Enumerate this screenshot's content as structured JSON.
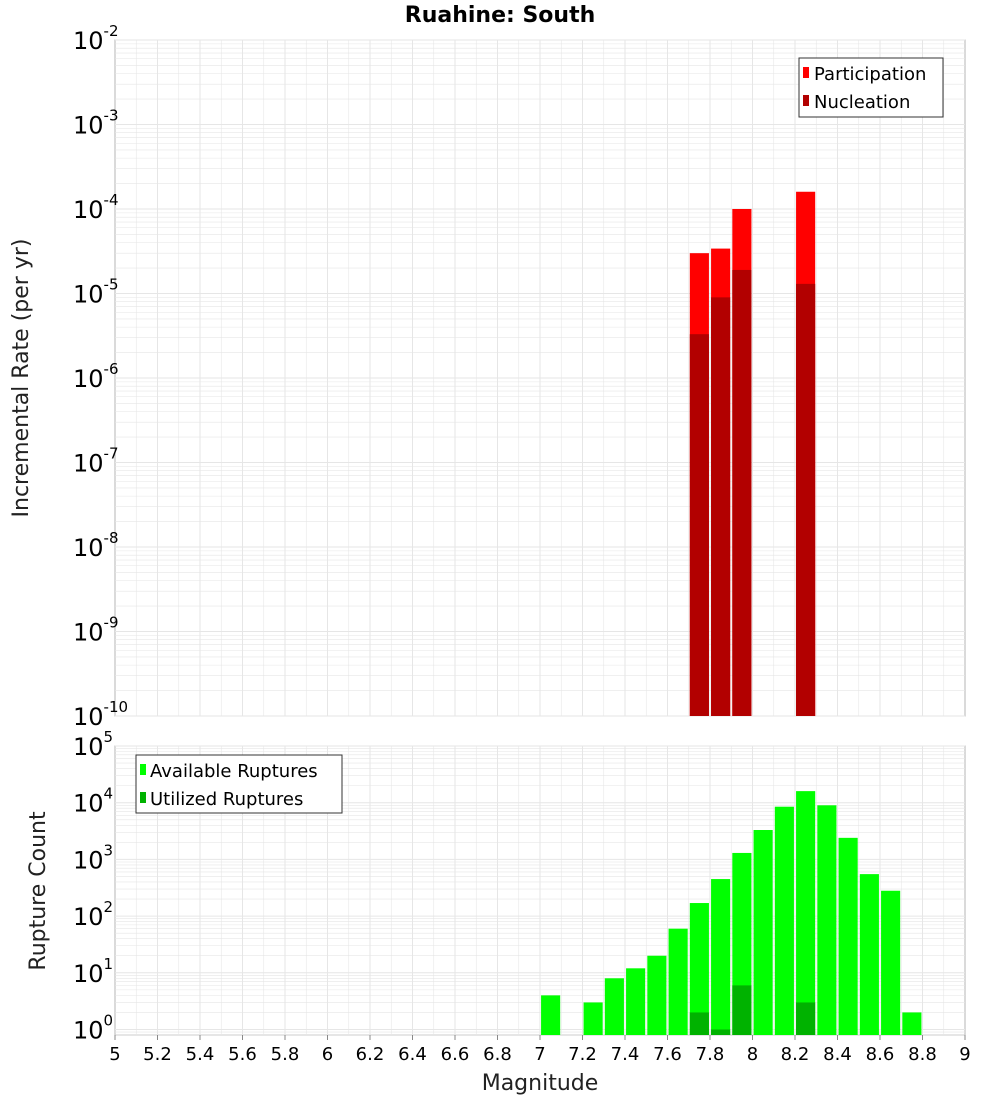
{
  "title": "Ruahine: South",
  "colors": {
    "participation": "#ff0000",
    "nucleation": "#b20000",
    "available": "#00ff00",
    "utilized": "#00b200",
    "grid": "#e6e6e6",
    "frame": "#b4b4b4"
  },
  "chart_data": [
    {
      "type": "bar",
      "name": "rate-panel",
      "ylabel": "Incremental Rate (per yr)",
      "yscale": "log",
      "ylim": [
        1e-10,
        0.01
      ],
      "y_ticks": [
        {
          "base": "10",
          "exp": "-10"
        },
        {
          "base": "10",
          "exp": "-9"
        },
        {
          "base": "10",
          "exp": "-8"
        },
        {
          "base": "10",
          "exp": "-7"
        },
        {
          "base": "10",
          "exp": "-6"
        },
        {
          "base": "10",
          "exp": "-5"
        },
        {
          "base": "10",
          "exp": "-4"
        },
        {
          "base": "10",
          "exp": "-3"
        },
        {
          "base": "10",
          "exp": "-2"
        }
      ],
      "grid": true,
      "legend": {
        "placement": "top-right",
        "entries": [
          {
            "label": "Participation",
            "color": "#ff0000"
          },
          {
            "label": "Nucleation",
            "color": "#b20000"
          }
        ]
      },
      "series": [
        {
          "name": "Participation",
          "x": [
            7.75,
            7.85,
            7.95,
            8.25
          ],
          "values": [
            3e-05,
            3.4e-05,
            0.0001,
            0.00016
          ]
        },
        {
          "name": "Nucleation",
          "x": [
            7.75,
            7.85,
            7.95,
            8.25
          ],
          "values": [
            3.3e-06,
            9e-06,
            1.9e-05,
            1.3e-05
          ]
        }
      ]
    },
    {
      "type": "bar",
      "name": "count-panel",
      "ylabel": "Rupture Count",
      "xlabel": "Magnitude",
      "yscale": "log",
      "ylim": [
        0.8,
        100000
      ],
      "y_ticks": [
        {
          "base": "10",
          "exp": "0"
        },
        {
          "base": "10",
          "exp": "1"
        },
        {
          "base": "10",
          "exp": "2"
        },
        {
          "base": "10",
          "exp": "3"
        },
        {
          "base": "10",
          "exp": "4"
        },
        {
          "base": "10",
          "exp": "5"
        }
      ],
      "xlim": [
        5,
        9
      ],
      "x_ticks": [
        "5",
        "5.2",
        "5.4",
        "5.6",
        "5.8",
        "6",
        "6.2",
        "6.4",
        "6.6",
        "6.8",
        "7",
        "7.2",
        "7.4",
        "7.6",
        "7.8",
        "8",
        "8.2",
        "8.4",
        "8.6",
        "8.8",
        "9"
      ],
      "grid": true,
      "legend": {
        "placement": "top-left",
        "entries": [
          {
            "label": "Available Ruptures",
            "color": "#00ff00"
          },
          {
            "label": "Utilized Ruptures",
            "color": "#00b200"
          }
        ]
      },
      "series": [
        {
          "name": "Available Ruptures",
          "x": [
            7.05,
            7.25,
            7.35,
            7.45,
            7.55,
            7.65,
            7.75,
            7.85,
            7.95,
            8.05,
            8.15,
            8.25,
            8.35,
            8.45,
            8.55,
            8.65,
            8.75
          ],
          "values": [
            4,
            3,
            8,
            12,
            20,
            60,
            170,
            450,
            1300,
            3300,
            8500,
            16000,
            9000,
            2400,
            550,
            280,
            2
          ]
        },
        {
          "name": "Utilized Ruptures",
          "x": [
            7.75,
            7.85,
            7.95,
            8.25
          ],
          "values": [
            2,
            1,
            6,
            3
          ]
        }
      ]
    }
  ]
}
